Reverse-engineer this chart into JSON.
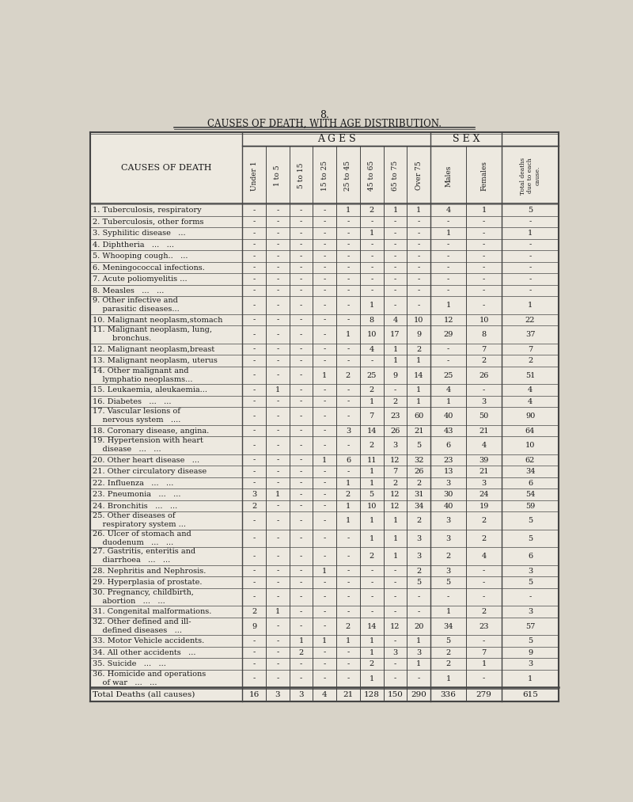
{
  "page_number": "8.",
  "title": "CAUSES OF DEATH, WITH AGE DISTRIBUTION.",
  "col_headers_age": [
    "Under 1",
    "1 to 5",
    "5 to 15",
    "15 to 25",
    "25 to 45",
    "45 to 65",
    "65 to 75",
    "Over 75"
  ],
  "col_headers_sex": [
    "Males",
    "Females"
  ],
  "col_header_total": "Total deaths\ndue to each\ncause.",
  "row_label_col": "CAUSES OF DEATH",
  "rows": [
    {
      "label": "1. Tuberculosis, respiratory",
      "data": [
        "-",
        "-",
        "-",
        "-",
        "1",
        "2",
        "1",
        "1",
        "4",
        "1",
        "5"
      ],
      "multiline": false
    },
    {
      "label": "2. Tuberculosis, other forms",
      "data": [
        "-",
        "-",
        "-",
        "-",
        "-",
        "-",
        "-",
        "-",
        "-",
        "-",
        "-"
      ],
      "multiline": false
    },
    {
      "label": "3. Syphilitic disease   ...",
      "data": [
        "-",
        "-",
        "-",
        "-",
        "-",
        "1",
        "-",
        "-",
        "1",
        "-",
        "1"
      ],
      "multiline": false
    },
    {
      "label": "4. Diphtheria   ...   ...",
      "data": [
        "-",
        "-",
        "-",
        "-",
        "-",
        "-",
        "-",
        "-",
        "-",
        "-",
        "-"
      ],
      "multiline": false
    },
    {
      "label": "5. Whooping cough..   ...",
      "data": [
        "-",
        "-",
        "-",
        "-",
        "-",
        "-",
        "-",
        "-",
        "-",
        "-",
        "-"
      ],
      "multiline": false
    },
    {
      "label": "6. Meningococcal infections.",
      "data": [
        "-",
        "-",
        "-",
        "-",
        "-",
        "-",
        "-",
        "-",
        "-",
        "-",
        "-"
      ],
      "multiline": false
    },
    {
      "label": "7. Acute poliomyelitis ...",
      "data": [
        "-",
        "-",
        "-",
        "-",
        "-",
        "-",
        "-",
        "-",
        "-",
        "-",
        "-"
      ],
      "multiline": false
    },
    {
      "label": "8. Measles   ...   ...",
      "data": [
        "-",
        "-",
        "-",
        "-",
        "-",
        "-",
        "-",
        "-",
        "-",
        "-",
        "-"
      ],
      "multiline": false
    },
    {
      "label1": "9. Other infective and",
      "label2": "    parasitic diseases...",
      "data": [
        "-",
        "-",
        "-",
        "-",
        "-",
        "1",
        "-",
        "-",
        "1",
        "-",
        "1"
      ],
      "multiline": true
    },
    {
      "label": "10. Malignant neoplasm,stomach",
      "data": [
        "-",
        "-",
        "-",
        "-",
        "-",
        "8",
        "4",
        "10",
        "12",
        "10",
        "22"
      ],
      "multiline": false
    },
    {
      "label1": "11. Malignant neoplasm, lung,",
      "label2": "        bronchus.",
      "data": [
        "-",
        "-",
        "-",
        "-",
        "1",
        "10",
        "17",
        "9",
        "29",
        "8",
        "37"
      ],
      "multiline": true
    },
    {
      "label": "12. Malignant neoplasm,breast",
      "data": [
        "-",
        "-",
        "-",
        "-",
        "-",
        "4",
        "1",
        "2",
        "-",
        "7",
        "7"
      ],
      "multiline": false
    },
    {
      "label": "13. Malignant neoplasm, uterus",
      "data": [
        "-",
        "-",
        "-",
        "-",
        "-",
        "-",
        "1",
        "1",
        "-",
        "2",
        "2"
      ],
      "multiline": false
    },
    {
      "label1": "14. Other malignant and",
      "label2": "    lymphatio neoplasms...",
      "data": [
        "-",
        "-",
        "-",
        "1",
        "2",
        "25",
        "9",
        "14",
        "25",
        "26",
        "51"
      ],
      "multiline": true
    },
    {
      "label": "15. Leukaemia, aleukaemia...",
      "data": [
        "-",
        "1",
        "-",
        "-",
        "-",
        "2",
        "-",
        "1",
        "4",
        "-",
        "4"
      ],
      "multiline": false
    },
    {
      "label": "16. Diabetes   ...   ...",
      "data": [
        "-",
        "-",
        "-",
        "-",
        "-",
        "1",
        "2",
        "1",
        "1",
        "3",
        "4"
      ],
      "multiline": false
    },
    {
      "label1": "17. Vascular lesions of",
      "label2": "    nervous system   ....",
      "data": [
        "-",
        "-",
        "-",
        "-",
        "-",
        "7",
        "23",
        "60",
        "40",
        "50",
        "90"
      ],
      "multiline": true
    },
    {
      "label": "18. Coronary disease, angina.",
      "data": [
        "-",
        "-",
        "-",
        "-",
        "3",
        "14",
        "26",
        "21",
        "43",
        "21",
        "64"
      ],
      "multiline": false
    },
    {
      "label1": "19. Hypertension with heart",
      "label2": "    disease   ...   ...",
      "data": [
        "-",
        "-",
        "-",
        "-",
        "-",
        "2",
        "3",
        "5",
        "6",
        "4",
        "10"
      ],
      "multiline": true
    },
    {
      "label": "20. Other heart disease   ...",
      "data": [
        "-",
        "-",
        "-",
        "1",
        "6",
        "11",
        "12",
        "32",
        "23",
        "39",
        "62"
      ],
      "multiline": false
    },
    {
      "label": "21. Other circulatory disease",
      "data": [
        "-",
        "-",
        "-",
        "-",
        "-",
        "1",
        "7",
        "26",
        "13",
        "21",
        "34"
      ],
      "multiline": false
    },
    {
      "label": "22. Influenza   ...   ...",
      "data": [
        "-",
        "-",
        "-",
        "-",
        "1",
        "1",
        "2",
        "2",
        "3",
        "3",
        "6"
      ],
      "multiline": false
    },
    {
      "label": "23. Pneumonia   ...   ...",
      "data": [
        "3",
        "1",
        "-",
        "-",
        "2",
        "5",
        "12",
        "31",
        "30",
        "24",
        "54"
      ],
      "multiline": false
    },
    {
      "label": "24. Bronchitis   ...   ...",
      "data": [
        "2",
        "-",
        "-",
        "-",
        "1",
        "10",
        "12",
        "34",
        "40",
        "19",
        "59"
      ],
      "multiline": false
    },
    {
      "label1": "25. Other diseases of",
      "label2": "    respiratory system ...",
      "data": [
        "-",
        "-",
        "-",
        "-",
        "1",
        "1",
        "1",
        "2",
        "3",
        "2",
        "5"
      ],
      "multiline": true
    },
    {
      "label1": "26. Ulcer of stomach and",
      "label2": "    duodenum   ...   ...",
      "data": [
        "-",
        "-",
        "-",
        "-",
        "-",
        "1",
        "1",
        "3",
        "3",
        "2",
        "5"
      ],
      "multiline": true
    },
    {
      "label1": "27. Gastritis, enteritis and",
      "label2": "    diarrhoea   ...   ...",
      "data": [
        "-",
        "-",
        "-",
        "-",
        "-",
        "2",
        "1",
        "3",
        "2",
        "4",
        "6"
      ],
      "multiline": true
    },
    {
      "label": "28. Nephritis and Nephrosis.",
      "data": [
        "-",
        "-",
        "-",
        "1",
        "-",
        "-",
        "-",
        "2",
        "3",
        "-",
        "3"
      ],
      "multiline": false
    },
    {
      "label": "29. Hyperplasia of prostate.",
      "data": [
        "-",
        "-",
        "-",
        "-",
        "-",
        "-",
        "-",
        "5",
        "5",
        "-",
        "5"
      ],
      "multiline": false
    },
    {
      "label1": "30. Pregnancy, childbirth,",
      "label2": "    abortion   ...   ...",
      "data": [
        "-",
        "-",
        "-",
        "-",
        "-",
        "-",
        "-",
        "-",
        "-",
        "-",
        "-"
      ],
      "multiline": true
    },
    {
      "label": "31. Congenital malformations.",
      "data": [
        "2",
        "1",
        "-",
        "-",
        "-",
        "-",
        "-",
        "-",
        "1",
        "2",
        "3"
      ],
      "multiline": false
    },
    {
      "label1": "32. Other defined and ill-",
      "label2": "    defined diseases   ...",
      "data": [
        "9",
        "-",
        "-",
        "-",
        "2",
        "14",
        "12",
        "20",
        "34",
        "23",
        "57"
      ],
      "multiline": true
    },
    {
      "label": "33. Motor Vehicle accidents.",
      "data": [
        "-",
        "-",
        "1",
        "1",
        "1",
        "1",
        "-",
        "1",
        "5",
        "-",
        "5"
      ],
      "multiline": false
    },
    {
      "label": "34. All other accidents   ...",
      "data": [
        "-",
        "-",
        "2",
        "-",
        "-",
        "1",
        "3",
        "3",
        "2",
        "7",
        "9"
      ],
      "multiline": false
    },
    {
      "label": "35. Suicide   ...   ...",
      "data": [
        "-",
        "-",
        "-",
        "-",
        "-",
        "2",
        "-",
        "1",
        "2",
        "1",
        "3"
      ],
      "multiline": false
    },
    {
      "label1": "36. Homicide and operations",
      "label2": "    of war   ...   ...",
      "data": [
        "-",
        "-",
        "-",
        "-",
        "-",
        "1",
        "-",
        "-",
        "1",
        "-",
        "1"
      ],
      "multiline": true
    }
  ],
  "total_row": {
    "label": "Total Deaths (all causes)",
    "data": [
      "16",
      "3",
      "3",
      "4",
      "21",
      "128",
      "150",
      "290",
      "336",
      "279",
      "615"
    ]
  },
  "bg_color": "#d8d3c8",
  "table_bg": "#ede9e0",
  "line_color": "#444444",
  "text_color": "#1a1a1a"
}
